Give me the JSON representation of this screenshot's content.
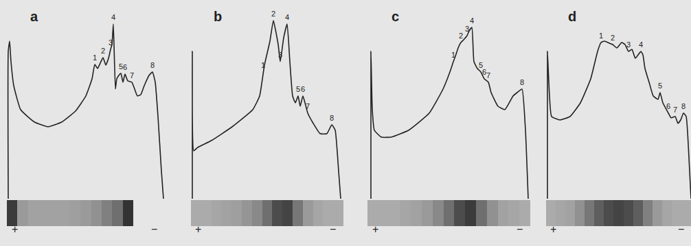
{
  "chart_data": [
    {
      "type": "line",
      "title": "a",
      "color": "#222222",
      "grid": false,
      "tick_labels": false,
      "xlim": [
        0,
        230
      ],
      "ylim": [
        0,
        290
      ],
      "x": [
        2,
        2,
        4,
        6,
        10,
        20,
        40,
        60,
        80,
        100,
        115,
        124,
        128,
        132,
        136,
        140,
        144,
        148,
        151,
        153,
        155,
        158,
        160,
        163,
        166,
        169,
        172,
        176,
        182,
        186,
        190,
        195,
        200,
        207,
        212,
        216,
        220,
        225,
        228
      ],
      "values": [
        0,
        215,
        230,
        200,
        165,
        130,
        112,
        105,
        112,
        128,
        150,
        175,
        196,
        190,
        198,
        206,
        195,
        205,
        218,
        225,
        255,
        160,
        175,
        180,
        183,
        170,
        182,
        172,
        170,
        160,
        150,
        152,
        165,
        180,
        185,
        170,
        120,
        40,
        0
      ],
      "peaks": [
        {
          "label": "1",
          "x": 128,
          "y": 196
        },
        {
          "label": "2",
          "x": 140,
          "y": 206
        },
        {
          "label": "3",
          "x": 151,
          "y": 218
        },
        {
          "label": "4",
          "x": 155,
          "y": 255
        },
        {
          "label": "5",
          "x": 166,
          "y": 183
        },
        {
          "label": "6",
          "x": 172,
          "y": 182
        },
        {
          "label": "7",
          "x": 182,
          "y": 170
        },
        {
          "label": "8",
          "x": 212,
          "y": 185
        }
      ],
      "gel": [
        0.9,
        0.35,
        0.3,
        0.3,
        0.3,
        0.3,
        0.32,
        0.35,
        0.4,
        0.5,
        0.6,
        0.95,
        null,
        null,
        null
      ],
      "gel_lim": [
        0,
        1
      ],
      "electrodes": {
        "anode": "+",
        "cathode": "−"
      }
    },
    {
      "type": "line",
      "title": "b",
      "color": "#222222",
      "grid": false,
      "tick_labels": false,
      "xlim": [
        0,
        222
      ],
      "ylim": [
        0,
        290
      ],
      "x": [
        2,
        2,
        4,
        10,
        30,
        60,
        90,
        100,
        107,
        115,
        120,
        127,
        130,
        135,
        140,
        144,
        148,
        152,
        156,
        159,
        163,
        166,
        170,
        178,
        188,
        198,
        205,
        210,
        215,
        218
      ],
      "values": [
        0,
        215,
        70,
        75,
        85,
        105,
        130,
        150,
        195,
        230,
        260,
        225,
        200,
        235,
        255,
        200,
        150,
        140,
        150,
        135,
        150,
        140,
        125,
        110,
        95,
        95,
        108,
        100,
        40,
        0
      ],
      "peaks": [
        {
          "label": "1",
          "x": 105,
          "y": 185
        },
        {
          "label": "2",
          "x": 120,
          "y": 260
        },
        {
          "label": "3",
          "x": 130,
          "y": 200
        },
        {
          "label": "4",
          "x": 140,
          "y": 255
        },
        {
          "label": "5",
          "x": 156,
          "y": 150
        },
        {
          "label": "6",
          "x": 163,
          "y": 150
        },
        {
          "label": "7",
          "x": 170,
          "y": 125
        },
        {
          "label": "8",
          "x": 205,
          "y": 108
        }
      ],
      "gel": [
        0.25,
        0.25,
        0.28,
        0.3,
        0.32,
        0.38,
        0.45,
        0.6,
        0.8,
        0.85,
        0.55,
        0.35,
        0.28,
        0.25,
        0.25
      ],
      "gel_lim": [
        0,
        1
      ],
      "electrodes": {
        "anode": "+",
        "cathode": "−"
      }
    },
    {
      "type": "line",
      "title": "c",
      "color": "#222222",
      "grid": false,
      "tick_labels": false,
      "xlim": [
        0,
        237
      ],
      "ylim": [
        0,
        290
      ],
      "x": [
        5,
        5,
        7,
        10,
        20,
        35,
        60,
        90,
        110,
        120,
        125,
        128,
        132,
        136,
        140,
        145,
        148,
        152,
        155,
        160,
        165,
        170,
        176,
        180,
        190,
        200,
        212,
        218,
        225,
        230,
        234
      ],
      "values": [
        0,
        215,
        130,
        100,
        90,
        90,
        100,
        125,
        160,
        185,
        200,
        208,
        220,
        228,
        232,
        238,
        245,
        250,
        200,
        190,
        185,
        175,
        170,
        155,
        135,
        130,
        150,
        155,
        160,
        100,
        0
      ],
      "peaks": [
        {
          "label": "1",
          "x": 125,
          "y": 200
        },
        {
          "label": "2",
          "x": 136,
          "y": 228
        },
        {
          "label": "3",
          "x": 145,
          "y": 238
        },
        {
          "label": "4",
          "x": 152,
          "y": 250
        },
        {
          "label": "5",
          "x": 165,
          "y": 185
        },
        {
          "label": "6",
          "x": 170,
          "y": 175
        },
        {
          "label": "7",
          "x": 176,
          "y": 170
        },
        {
          "label": "8",
          "x": 225,
          "y": 160
        }
      ],
      "gel": [
        0.25,
        0.25,
        0.25,
        0.28,
        0.3,
        0.35,
        0.45,
        0.6,
        0.8,
        0.9,
        0.6,
        0.4,
        0.3,
        0.28,
        0.25
      ],
      "gel_lim": [
        0,
        1
      ],
      "electrodes": {
        "anode": "+",
        "cathode": "−"
      }
    },
    {
      "type": "line",
      "title": "d",
      "color": "#222222",
      "grid": false,
      "tick_labels": false,
      "xlim": [
        0,
        211
      ],
      "ylim": [
        0,
        290
      ],
      "x": [
        2,
        2,
        4,
        8,
        20,
        35,
        50,
        65,
        75,
        80,
        85,
        92,
        97,
        103,
        110,
        115,
        120,
        125,
        130,
        138,
        141,
        144,
        150,
        156,
        163,
        166,
        170,
        178,
        182,
        188,
        192,
        196,
        200,
        204,
        208,
        211
      ],
      "values": [
        0,
        215,
        170,
        120,
        115,
        120,
        140,
        175,
        215,
        228,
        230,
        227,
        225,
        220,
        228,
        225,
        215,
        218,
        205,
        215,
        210,
        190,
        170,
        150,
        145,
        155,
        140,
        125,
        118,
        120,
        110,
        115,
        125,
        120,
        60,
        0
      ],
      "peaks": [
        {
          "label": "1",
          "x": 80,
          "y": 228
        },
        {
          "label": "2",
          "x": 97,
          "y": 225
        },
        {
          "label": "3",
          "x": 120,
          "y": 215
        },
        {
          "label": "4",
          "x": 138,
          "y": 215
        },
        {
          "label": "5",
          "x": 166,
          "y": 155
        },
        {
          "label": "6",
          "x": 178,
          "y": 125
        },
        {
          "label": "7",
          "x": 188,
          "y": 120
        },
        {
          "label": "8",
          "x": 200,
          "y": 125
        }
      ],
      "gel": [
        0.25,
        0.28,
        0.3,
        0.4,
        0.55,
        0.7,
        0.8,
        0.85,
        0.8,
        0.7,
        0.5,
        0.35,
        0.28,
        0.25,
        0.25
      ],
      "gel_lim": [
        0,
        1
      ],
      "electrodes": {
        "anode": "+",
        "cathode": "−"
      }
    }
  ]
}
